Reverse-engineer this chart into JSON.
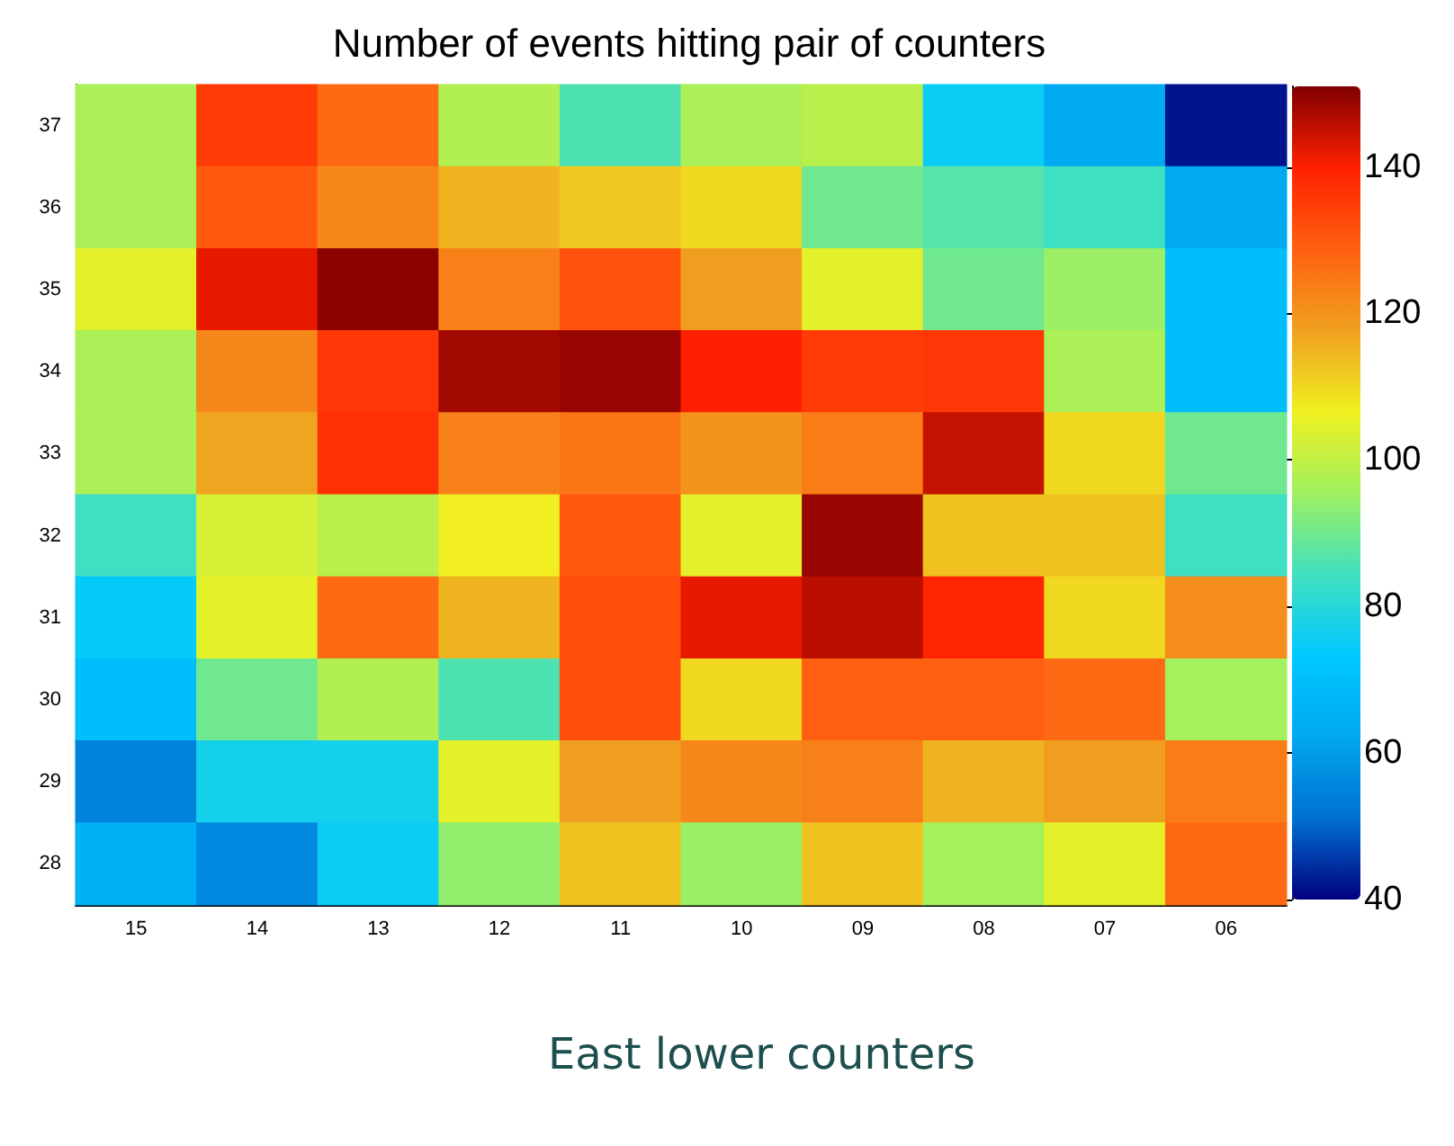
{
  "chart_data": {
    "type": "heatmap",
    "title": "Number of events hitting pair of counters",
    "xlabel": "East lower counters",
    "categories": [
      "15",
      "14",
      "13",
      "12",
      "11",
      "10",
      "09",
      "08",
      "07",
      "06"
    ],
    "y_categories": [
      "37",
      "36",
      "35",
      "34",
      "33",
      "32",
      "31",
      "30",
      "29",
      "28"
    ],
    "cells": [
      [
        97,
        135,
        127,
        98,
        86,
        97,
        99,
        75,
        63,
        42
      ],
      [
        97,
        130,
        122,
        115,
        112,
        110,
        90,
        87,
        84,
        63
      ],
      [
        105,
        142,
        150,
        123,
        131,
        118,
        105,
        90,
        95,
        70
      ],
      [
        97,
        122,
        136,
        148,
        149,
        140,
        135,
        136,
        97,
        70
      ],
      [
        97,
        117,
        137,
        123,
        125,
        120,
        124,
        145,
        110,
        90
      ],
      [
        84,
        103,
        99,
        107,
        130,
        105,
        149,
        113,
        113,
        84
      ],
      [
        74,
        105,
        127,
        115,
        132,
        142,
        146,
        139,
        110,
        121
      ],
      [
        70,
        90,
        98,
        86,
        132,
        110,
        129,
        129,
        127,
        96
      ],
      [
        55,
        77,
        77,
        105,
        118,
        122,
        123,
        115,
        118,
        124
      ],
      [
        65,
        56,
        75,
        94,
        113,
        95,
        113,
        96,
        105,
        127
      ]
    ],
    "clim": [
      40,
      151
    ],
    "cticks": [
      40,
      60,
      80,
      100,
      120,
      140
    ]
  }
}
